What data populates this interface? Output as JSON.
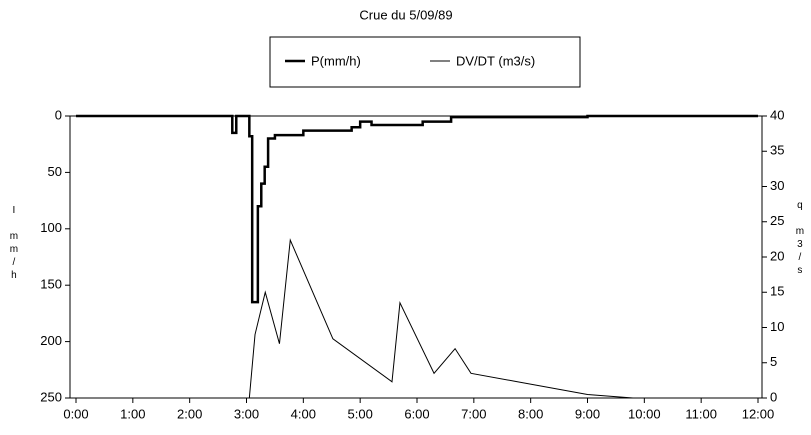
{
  "chart_data": {
    "type": "line",
    "title": "Crue du 5/09/89",
    "xlim": [
      0,
      12
    ],
    "xticks": [
      {
        "value": 0,
        "label": "0:00"
      },
      {
        "value": 1,
        "label": "1:00"
      },
      {
        "value": 2,
        "label": "2:00"
      },
      {
        "value": 3,
        "label": "3:00"
      },
      {
        "value": 4,
        "label": "4:00"
      },
      {
        "value": 5,
        "label": "5:00"
      },
      {
        "value": 6,
        "label": "6:00"
      },
      {
        "value": 7,
        "label": "7:00"
      },
      {
        "value": 8,
        "label": "8:00"
      },
      {
        "value": 9,
        "label": "9:00"
      },
      {
        "value": 10,
        "label": "10:00"
      },
      {
        "value": 11,
        "label": "11:00"
      },
      {
        "value": 12,
        "label": "12:00"
      }
    ],
    "ylabel": "I mm/h",
    "ylim": [
      250,
      0
    ],
    "yticks": [
      0,
      50,
      100,
      150,
      200,
      250
    ],
    "y2label": "q m3/s",
    "y2lim": [
      0,
      40
    ],
    "y2ticks": [
      0,
      5,
      10,
      15,
      20,
      25,
      30,
      35,
      40
    ],
    "series": [
      {
        "name": "P(mm/h)",
        "color": "#000000",
        "x": [
          0,
          2.75,
          2.75,
          2.82,
          2.82,
          3.05,
          3.05,
          3.1,
          3.1,
          3.2,
          3.2,
          3.26,
          3.26,
          3.32,
          3.32,
          3.38,
          3.38,
          3.5,
          3.5,
          4.0,
          4.0,
          4.85,
          4.85,
          5.0,
          5.0,
          5.2,
          5.2,
          6.1,
          6.1,
          6.6,
          6.6,
          9.0,
          9.0,
          12
        ],
        "values": [
          0,
          0,
          15,
          15,
          0,
          0,
          18,
          18,
          165,
          165,
          80,
          80,
          60,
          60,
          45,
          45,
          20,
          20,
          17,
          17,
          13,
          13,
          10,
          10,
          5,
          5,
          8,
          8,
          5,
          5,
          1,
          1,
          0,
          0
        ]
      },
      {
        "name": "DV/DT (m3/s)",
        "color": "#000000",
        "axis": "y2",
        "x": [
          0,
          3.05,
          3.15,
          3.33,
          3.58,
          3.77,
          4.52,
          5.56,
          5.7,
          6.3,
          6.67,
          6.95,
          9.0,
          9.8,
          12
        ],
        "values": [
          0,
          0,
          9,
          15,
          7.7,
          22.4,
          8.4,
          2.3,
          13.5,
          3.5,
          7,
          3.5,
          0.5,
          0,
          0
        ]
      }
    ]
  }
}
